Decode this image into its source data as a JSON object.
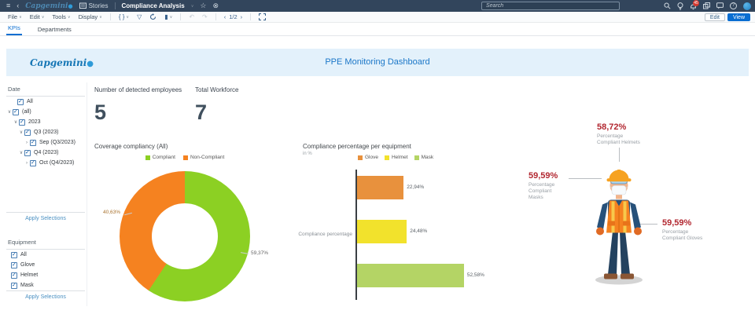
{
  "shell": {
    "brand": "Capgemini",
    "stories_label": "Stories",
    "story_title": "Compliance Analysis",
    "search_placeholder": "Search",
    "notification_badge": "45"
  },
  "toolbar": {
    "menus": [
      {
        "label": "File"
      },
      {
        "label": "Edit"
      },
      {
        "label": "Tools"
      },
      {
        "label": "Display"
      }
    ],
    "braces_label": "{ }",
    "page_indicator": "1/2",
    "edit_button": "Edit",
    "view_button": "View"
  },
  "tabs": {
    "kpis": "KPIs",
    "departments": "Departments"
  },
  "banner": {
    "brand": "Capgemini",
    "title": "PPE Monitoring Dashboard"
  },
  "date_filter": {
    "title": "Date",
    "apply": "Apply Selections",
    "items": [
      {
        "label": "All",
        "checked": true,
        "expand": "none"
      },
      {
        "label": "(all)",
        "checked": true,
        "expand": "down"
      },
      {
        "label": "2023",
        "checked": true,
        "expand": "down"
      },
      {
        "label": "Q3 (2023)",
        "checked": true,
        "expand": "down"
      },
      {
        "label": "Sep (Q3/2023)",
        "checked": true,
        "expand": "right"
      },
      {
        "label": "Q4 (2023)",
        "checked": true,
        "expand": "down"
      },
      {
        "label": "Oct (Q4/2023)",
        "checked": true,
        "expand": "right"
      }
    ]
  },
  "equipment_filter": {
    "title": "Equipment",
    "apply": "Apply Selections",
    "items": [
      {
        "label": "All",
        "checked": true
      },
      {
        "label": "Glove",
        "checked": true
      },
      {
        "label": "Helmet",
        "checked": true
      },
      {
        "label": "Mask",
        "checked": true
      }
    ]
  },
  "kpis": [
    {
      "label": "Number of detected employees",
      "value": "5"
    },
    {
      "label": "Total Workforce",
      "value": "7"
    }
  ],
  "chart_data": [
    {
      "type": "pie",
      "donut": true,
      "title": "Coverage compliancy (All)",
      "legend_position": "top",
      "slices": [
        {
          "label": "Compliant",
          "value": 59.37,
          "display": "59,37%",
          "color": "#8CD023"
        },
        {
          "label": "Non-Compliant",
          "value": 40.63,
          "display": "40,63%",
          "color": "#F58220"
        }
      ]
    },
    {
      "type": "bar",
      "orientation": "horizontal",
      "title": "Compliance percentage per equipment",
      "subtitle": "in %",
      "axis_title": "Compliance percentage",
      "categories": [
        "Glove",
        "Helmet",
        "Mask"
      ],
      "values": [
        22.94,
        24.48,
        52.58
      ],
      "labels": [
        "22,94%",
        "24,48%",
        "52,58%"
      ],
      "colors": [
        "#E8913D",
        "#F2E22C",
        "#B4D465"
      ],
      "xlim": [
        0,
        60
      ],
      "legend_position": "top"
    }
  ],
  "worker_panel": {
    "callout_color": "#B22730",
    "helmet_callout": {
      "value": "58,72%",
      "line1": "Percentage",
      "line2": "Compliant Helmets"
    },
    "mask_callout": {
      "value": "59,59%",
      "line1": "Percentage",
      "line2": "Compliant",
      "line3": "Masks"
    },
    "glove_callout": {
      "value": "59,59%",
      "line1": "Percentage",
      "line2": "Compliant Gloves"
    }
  },
  "icons": {
    "menu": "≡",
    "back": "‹",
    "chevron_down": "∨",
    "chevron_right": "›",
    "star": "☆",
    "close_circle": "⊗",
    "funnel": "▽",
    "bookmark": "▮",
    "undo": "↶",
    "redo": "↷",
    "page_prev": "‹",
    "page_next": "›",
    "check": "✓",
    "help": "?",
    "brand_dot": "●"
  }
}
